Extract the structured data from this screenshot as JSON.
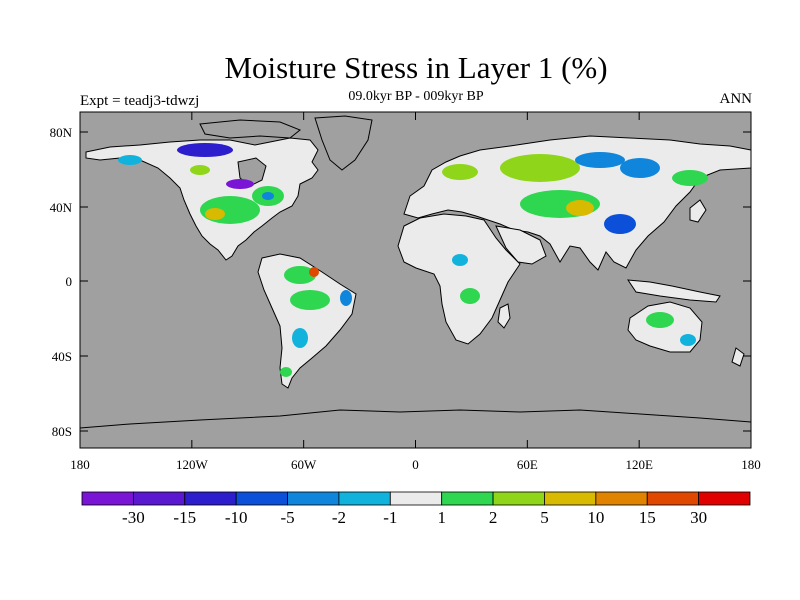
{
  "title": "Moisture Stress in Layer 1 (%)",
  "subtitle": "09.0kyr BP - 009kyr BP",
  "left_label": "Expt = teadj3-tdwzj",
  "right_label": "ANN",
  "lat_ticks": [
    "80N",
    "40N",
    "0",
    "40S",
    "80S"
  ],
  "lon_ticks": [
    "180",
    "120W",
    "60W",
    "0",
    "60E",
    "120E",
    "180"
  ],
  "colors": {
    "ocean": "#a0a0a0",
    "land": "#ebebeb",
    "coast": "#000000"
  },
  "colorbar": {
    "colors": [
      "#7a15d6",
      "#5a18d0",
      "#2c1ecc",
      "#0c4fd8",
      "#0f86dc",
      "#11b3dc",
      "#ebebeb",
      "#2fd650",
      "#8fd61a",
      "#d8ba00",
      "#e08400",
      "#e04800",
      "#e00000"
    ],
    "labels": [
      "-30",
      "-15",
      "-10",
      "-5",
      "-2",
      "-1",
      "1",
      "2",
      "5",
      "10",
      "15",
      "30"
    ]
  }
}
